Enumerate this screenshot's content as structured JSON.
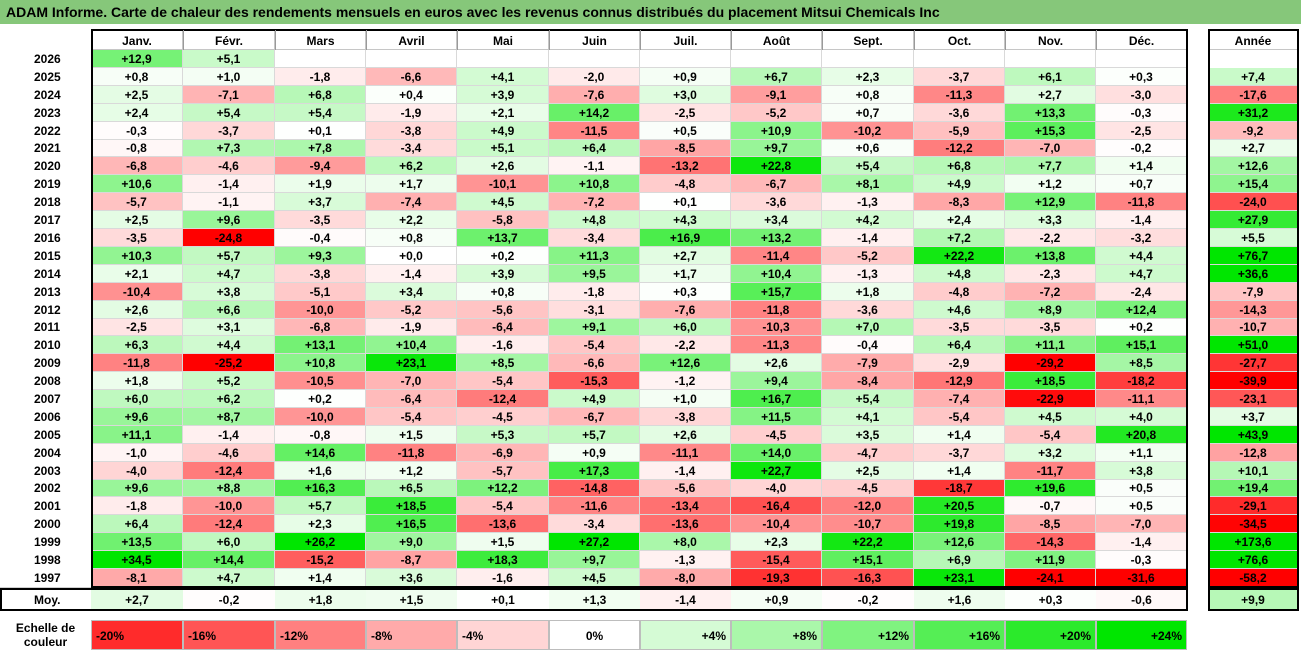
{
  "title": "ADAM Informe. Carte de chaleur des rendements mensuels en euros avec les revenus connus distribués du placement Mitsui Chemicals Inc",
  "colors": {
    "title_bar": "#86c77a",
    "negative": "#ff0000",
    "positive": "#00e600",
    "neutral": "#ffffff"
  },
  "chart_data": {
    "type": "heatmap",
    "columns": [
      "Janv.",
      "Févr.",
      "Mars",
      "Avril",
      "Mai",
      "Juin",
      "Juil.",
      "Août",
      "Sept.",
      "Oct.",
      "Nov.",
      "Déc."
    ],
    "annual_header": "Année",
    "rows": [
      {
        "year": "2026",
        "months": [
          "+12,9",
          "+5,1",
          "",
          "",
          "",
          "",
          "",
          "",
          "",
          "",
          "",
          ""
        ],
        "annual": ""
      },
      {
        "year": "2025",
        "months": [
          "+0,8",
          "+1,0",
          "-1,8",
          "-6,6",
          "+4,1",
          "-2,0",
          "+0,9",
          "+6,7",
          "+2,3",
          "-3,7",
          "+6,1",
          "+0,3"
        ],
        "annual": "+7,4"
      },
      {
        "year": "2024",
        "months": [
          "+2,5",
          "-7,1",
          "+6,8",
          "+0,4",
          "+3,9",
          "-7,6",
          "+3,0",
          "-9,1",
          "+0,8",
          "-11,3",
          "+2,7",
          "-3,0"
        ],
        "annual": "-17,6"
      },
      {
        "year": "2023",
        "months": [
          "+2,4",
          "+5,4",
          "+5,4",
          "-1,9",
          "+2,1",
          "+14,2",
          "-2,5",
          "-5,2",
          "+0,7",
          "-3,6",
          "+13,3",
          "-0,3"
        ],
        "annual": "+31,2"
      },
      {
        "year": "2022",
        "months": [
          "-0,3",
          "-3,7",
          "+0,1",
          "-3,8",
          "+4,9",
          "-11,5",
          "+0,5",
          "+10,9",
          "-10,2",
          "-5,9",
          "+15,3",
          "-2,5"
        ],
        "annual": "-9,2"
      },
      {
        "year": "2021",
        "months": [
          "-0,8",
          "+7,3",
          "+7,8",
          "-3,4",
          "+5,1",
          "+6,4",
          "-8,5",
          "+9,7",
          "+0,6",
          "-12,2",
          "-7,0",
          "-0,2"
        ],
        "annual": "+2,7"
      },
      {
        "year": "2020",
        "months": [
          "-6,8",
          "-4,6",
          "-9,4",
          "+6,2",
          "+2,6",
          "-1,1",
          "-13,2",
          "+22,8",
          "+5,4",
          "+6,8",
          "+7,7",
          "+1,4"
        ],
        "annual": "+12,6"
      },
      {
        "year": "2019",
        "months": [
          "+10,6",
          "-1,4",
          "+1,9",
          "+1,7",
          "-10,1",
          "+10,8",
          "-4,8",
          "-6,7",
          "+8,1",
          "+4,9",
          "+1,2",
          "+0,7"
        ],
        "annual": "+15,4"
      },
      {
        "year": "2018",
        "months": [
          "-5,7",
          "-1,1",
          "+3,7",
          "-7,4",
          "+4,5",
          "-7,2",
          "+0,1",
          "-3,6",
          "-1,3",
          "-8,3",
          "+12,9",
          "-11,8"
        ],
        "annual": "-24,0"
      },
      {
        "year": "2017",
        "months": [
          "+2,5",
          "+9,6",
          "-3,5",
          "+2,2",
          "-5,8",
          "+4,8",
          "+4,3",
          "+3,4",
          "+4,2",
          "+2,4",
          "+3,3",
          "-1,4"
        ],
        "annual": "+27,9"
      },
      {
        "year": "2016",
        "months": [
          "-3,5",
          "-24,8",
          "-0,4",
          "+0,8",
          "+13,7",
          "-3,4",
          "+16,9",
          "+13,2",
          "-1,4",
          "+7,2",
          "-2,2",
          "-3,2"
        ],
        "annual": "+5,5"
      },
      {
        "year": "2015",
        "months": [
          "+10,3",
          "+5,7",
          "+9,3",
          "+0,0",
          "+0,2",
          "+11,3",
          "+2,7",
          "-11,4",
          "-5,2",
          "+22,2",
          "+13,8",
          "+4,4"
        ],
        "annual": "+76,7"
      },
      {
        "year": "2014",
        "months": [
          "+2,1",
          "+4,7",
          "-3,8",
          "-1,4",
          "+3,9",
          "+9,5",
          "+1,7",
          "+10,4",
          "-1,3",
          "+4,8",
          "-2,3",
          "+4,7"
        ],
        "annual": "+36,6"
      },
      {
        "year": "2013",
        "months": [
          "-10,4",
          "+3,8",
          "-5,1",
          "+3,4",
          "+0,8",
          "-1,8",
          "+0,3",
          "+15,7",
          "+1,8",
          "-4,8",
          "-7,2",
          "-2,4"
        ],
        "annual": "-7,9"
      },
      {
        "year": "2012",
        "months": [
          "+2,6",
          "+6,6",
          "-10,0",
          "-5,2",
          "-5,6",
          "-3,1",
          "-7,6",
          "-11,8",
          "-3,6",
          "+4,6",
          "+8,9",
          "+12,4"
        ],
        "annual": "-14,3"
      },
      {
        "year": "2011",
        "months": [
          "-2,5",
          "+3,1",
          "-6,8",
          "-1,9",
          "-6,4",
          "+9,1",
          "+6,0",
          "-10,3",
          "+7,0",
          "-3,5",
          "-3,5",
          "+0,2"
        ],
        "annual": "-10,7"
      },
      {
        "year": "2010",
        "months": [
          "+6,3",
          "+4,4",
          "+13,1",
          "+10,4",
          "-1,6",
          "-5,4",
          "-2,2",
          "-11,3",
          "-0,4",
          "+6,4",
          "+11,1",
          "+15,1"
        ],
        "annual": "+51,0"
      },
      {
        "year": "2009",
        "months": [
          "-11,8",
          "-25,2",
          "+10,8",
          "+23,1",
          "+8,5",
          "-6,6",
          "+12,6",
          "+2,6",
          "-7,9",
          "-2,9",
          "-29,2",
          "+8,5"
        ],
        "annual": "-27,7"
      },
      {
        "year": "2008",
        "months": [
          "+1,8",
          "+5,2",
          "-10,5",
          "-7,0",
          "-5,4",
          "-15,3",
          "-1,2",
          "+9,4",
          "-8,4",
          "-12,9",
          "+18,5",
          "-18,2"
        ],
        "annual": "-39,9"
      },
      {
        "year": "2007",
        "months": [
          "+6,0",
          "+6,2",
          "+0,2",
          "-6,4",
          "-12,4",
          "+4,9",
          "+1,0",
          "+16,7",
          "+5,4",
          "-7,4",
          "-22,9",
          "-11,1"
        ],
        "annual": "-23,1"
      },
      {
        "year": "2006",
        "months": [
          "+9,6",
          "+8,7",
          "-10,0",
          "-5,4",
          "-4,5",
          "-6,7",
          "-3,8",
          "+11,5",
          "+4,1",
          "-5,4",
          "+4,5",
          "+4,0"
        ],
        "annual": "+3,7"
      },
      {
        "year": "2005",
        "months": [
          "+11,1",
          "-1,4",
          "-0,8",
          "+1,5",
          "+5,3",
          "+5,7",
          "+2,6",
          "-4,5",
          "+3,5",
          "+1,4",
          "-5,4",
          "+20,8"
        ],
        "annual": "+43,9"
      },
      {
        "year": "2004",
        "months": [
          "-1,0",
          "-4,6",
          "+14,6",
          "-11,8",
          "-6,9",
          "+0,9",
          "-11,1",
          "+14,0",
          "-4,7",
          "-3,7",
          "+3,2",
          "+1,1"
        ],
        "annual": "-12,8"
      },
      {
        "year": "2003",
        "months": [
          "-4,0",
          "-12,4",
          "+1,6",
          "+1,2",
          "-5,7",
          "+17,3",
          "-1,4",
          "+22,7",
          "+2,5",
          "+1,4",
          "-11,7",
          "+3,8"
        ],
        "annual": "+10,1"
      },
      {
        "year": "2002",
        "months": [
          "+9,6",
          "+8,8",
          "+16,3",
          "+6,5",
          "+12,2",
          "-14,8",
          "-5,6",
          "-4,0",
          "-4,5",
          "-18,7",
          "+19,6",
          "+0,5"
        ],
        "annual": "+19,4"
      },
      {
        "year": "2001",
        "months": [
          "-1,8",
          "-10,0",
          "+5,7",
          "+18,5",
          "-5,4",
          "-11,6",
          "-13,4",
          "-16,4",
          "-12,0",
          "+20,5",
          "-0,7",
          "+0,5"
        ],
        "annual": "-29,1"
      },
      {
        "year": "2000",
        "months": [
          "+6,4",
          "-12,4",
          "+2,3",
          "+16,5",
          "-13,6",
          "-3,4",
          "-13,6",
          "-10,4",
          "-10,7",
          "+19,8",
          "-8,5",
          "-7,0"
        ],
        "annual": "-34,5"
      },
      {
        "year": "1999",
        "months": [
          "+13,5",
          "+6,0",
          "+26,2",
          "+9,0",
          "+1,5",
          "+27,2",
          "+8,0",
          "+2,3",
          "+22,2",
          "+12,6",
          "-14,3",
          "-1,4"
        ],
        "annual": "+173,6"
      },
      {
        "year": "1998",
        "months": [
          "+34,5",
          "+14,4",
          "-15,2",
          "-8,7",
          "+18,3",
          "+9,7",
          "-1,3",
          "-15,4",
          "+15,1",
          "+6,9",
          "+11,9",
          "-0,3"
        ],
        "annual": "+76,6"
      },
      {
        "year": "1997",
        "months": [
          "-8,1",
          "+4,7",
          "+1,4",
          "+3,6",
          "-1,6",
          "+4,5",
          "-8,0",
          "-19,3",
          "-16,3",
          "+23,1",
          "-24,1",
          "-31,6"
        ],
        "annual": "-58,2"
      }
    ],
    "average": {
      "label": "Moy.",
      "months": [
        "+2,7",
        "-0,2",
        "+1,8",
        "+1,5",
        "+0,1",
        "+1,3",
        "-1,4",
        "+0,9",
        "-0,2",
        "+1,6",
        "+0,3",
        "-0,6"
      ],
      "annual": "+9,9"
    },
    "color_scale": {
      "label_line1": "Echelle de",
      "label_line2": "couleur",
      "stops": [
        "-20%",
        "-16%",
        "-12%",
        "-8%",
        "-4%",
        "0%",
        "+4%",
        "+8%",
        "+12%",
        "+16%",
        "+20%",
        "+24%"
      ]
    }
  }
}
